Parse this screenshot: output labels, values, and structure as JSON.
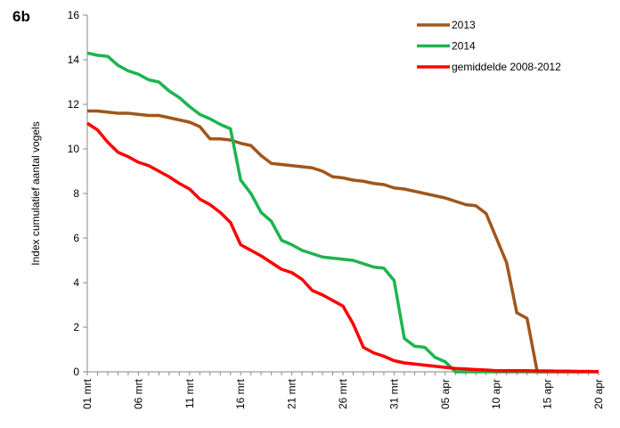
{
  "annotation": "6b",
  "chart_data": {
    "type": "line",
    "y_label": "Index cumulatief aantal vogels",
    "categories": [
      "01 mrt",
      null,
      null,
      null,
      null,
      "06 mrt",
      null,
      null,
      null,
      null,
      "11 mrt",
      null,
      null,
      null,
      null,
      "16 mrt",
      null,
      null,
      null,
      null,
      "21 mrt",
      null,
      null,
      null,
      null,
      "26 mrt",
      null,
      null,
      null,
      null,
      "31 mrt",
      null,
      null,
      null,
      null,
      "05 apr",
      null,
      null,
      null,
      null,
      "10 apr",
      null,
      null,
      null,
      null,
      "15 apr",
      null,
      null,
      null,
      null,
      "20 apr"
    ],
    "series": [
      {
        "name": "2013",
        "color": "#a0561c",
        "values": [
          11.7,
          11.7,
          11.65,
          11.6,
          11.6,
          11.55,
          11.5,
          11.5,
          11.4,
          11.3,
          11.2,
          11.0,
          10.45,
          10.45,
          10.4,
          10.25,
          10.15,
          9.7,
          9.35,
          9.3,
          9.25,
          9.2,
          9.15,
          9.0,
          8.75,
          8.7,
          8.6,
          8.55,
          8.45,
          8.4,
          8.25,
          8.2,
          8.1,
          8.0,
          7.9,
          7.8,
          7.65,
          7.5,
          7.45,
          7.1,
          6.0,
          4.9,
          2.65,
          2.4,
          0,
          0,
          0,
          0,
          0,
          0,
          0
        ]
      },
      {
        "name": "2014",
        "color": "#1db54f",
        "values": [
          14.3,
          14.2,
          14.15,
          13.75,
          13.5,
          13.35,
          13.1,
          13.0,
          12.6,
          12.3,
          11.9,
          11.55,
          11.35,
          11.1,
          10.9,
          8.6,
          8.0,
          7.15,
          6.75,
          5.9,
          5.7,
          5.45,
          5.3,
          5.15,
          5.1,
          5.05,
          5.0,
          4.85,
          4.7,
          4.65,
          4.1,
          1.5,
          1.15,
          1.1,
          0.65,
          0.45,
          0,
          0,
          0,
          0,
          0,
          0,
          0,
          0,
          0,
          0,
          0,
          0,
          0,
          0,
          0
        ]
      },
      {
        "name": "gemiddelde 2008-2012",
        "color": "#ff0000",
        "values": [
          11.15,
          10.85,
          10.3,
          9.85,
          9.65,
          9.4,
          9.25,
          9.0,
          8.75,
          8.45,
          8.2,
          7.75,
          7.5,
          7.15,
          6.7,
          5.7,
          5.45,
          5.2,
          4.9,
          4.6,
          4.45,
          4.15,
          3.65,
          3.45,
          3.2,
          2.95,
          2.15,
          1.1,
          0.85,
          0.7,
          0.5,
          0.4,
          0.35,
          0.3,
          0.25,
          0.2,
          0.15,
          0.13,
          0.1,
          0.08,
          0.05,
          0.05,
          0.05,
          0.05,
          0.04,
          0.04,
          0.03,
          0.03,
          0.02,
          0.02,
          0.01
        ]
      }
    ],
    "ylim": [
      0,
      16
    ],
    "yticks": [
      0,
      2,
      4,
      6,
      8,
      10,
      12,
      14,
      16
    ]
  }
}
